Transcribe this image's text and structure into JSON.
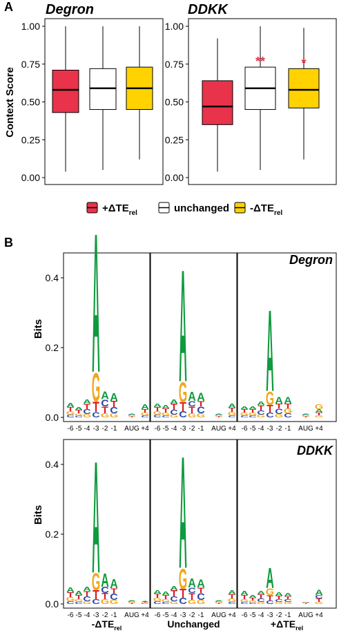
{
  "figure": {
    "panel_a_label": "A",
    "panel_b_label": "B"
  },
  "colors": {
    "up": "#e8334a",
    "unchanged": "#ffffff",
    "down": "#ffd200",
    "A": "#0f9a3e",
    "C": "#2a4aa8",
    "G": "#f2a81d",
    "T": "#d91f26"
  },
  "chart_data": [
    {
      "type": "box",
      "title": "Degron",
      "ylabel": "Context Score",
      "ylim": [
        0,
        1.05
      ],
      "yticks": [
        "0.00",
        "0.25",
        "0.50",
        "0.75",
        "1.00"
      ],
      "yticks_values": [
        0,
        0.25,
        0.5,
        0.75,
        1.0
      ],
      "boxes": [
        {
          "group": "+ΔTErel",
          "min": 0.04,
          "q1": 0.43,
          "median": 0.58,
          "q3": 0.71,
          "max": 1.0
        },
        {
          "group": "unchanged",
          "min": 0.05,
          "q1": 0.45,
          "median": 0.59,
          "q3": 0.72,
          "max": 1.0
        },
        {
          "group": "-ΔTErel",
          "min": 0.12,
          "q1": 0.45,
          "median": 0.59,
          "q3": 0.73,
          "max": 1.0
        }
      ],
      "annotations": [
        "",
        "",
        ""
      ]
    },
    {
      "type": "box",
      "title": "DDKK",
      "ylabel": "",
      "ylim": [
        0,
        1.05
      ],
      "yticks": [
        "0.00",
        "0.25",
        "0.50",
        "0.75",
        "1.00"
      ],
      "yticks_values": [
        0,
        0.25,
        0.5,
        0.75,
        1.0
      ],
      "boxes": [
        {
          "group": "+ΔTErel",
          "min": 0.04,
          "q1": 0.35,
          "median": 0.47,
          "q3": 0.64,
          "max": 0.92
        },
        {
          "group": "unchanged",
          "min": 0.05,
          "q1": 0.45,
          "median": 0.59,
          "q3": 0.73,
          "max": 1.0
        },
        {
          "group": "-ΔTErel",
          "min": 0.12,
          "q1": 0.46,
          "median": 0.58,
          "q3": 0.72,
          "max": 0.99
        }
      ],
      "annotations": [
        "",
        "**",
        "*"
      ]
    },
    {
      "type": "sequence-logo",
      "ylabel": "Bits",
      "yticks": [
        "0.0",
        "0.2",
        "0.4"
      ],
      "yticks_values": [
        0,
        0.2,
        0.4
      ],
      "ylim": [
        0,
        0.6
      ],
      "positions": [
        "-6",
        "-5",
        "-4",
        "-3",
        "-2",
        "-1",
        "AUG",
        "+4"
      ],
      "columns": [
        "-ΔTErel",
        "Unchanged",
        "+ΔTErel"
      ],
      "rows": [
        "Degron",
        "DDKK"
      ],
      "logos": [
        {
          "row": "Degron",
          "column": "-ΔTErel",
          "stacks": [
            [
              [
                "C",
                0.008
              ],
              [
                "G",
                0.01
              ],
              [
                "T",
                0.012
              ],
              [
                "A",
                0.012
              ]
            ],
            [
              [
                "C",
                0.005
              ],
              [
                "G",
                0.007
              ],
              [
                "T",
                0.01
              ],
              [
                "A",
                0.008
              ]
            ],
            [
              [
                "G",
                0.01
              ],
              [
                "C",
                0.014
              ],
              [
                "T",
                0.016
              ],
              [
                "A",
                0.012
              ]
            ],
            [
              [
                "C",
                0.016
              ],
              [
                "T",
                0.03
              ],
              [
                "G",
                0.085
              ],
              [
                "A",
                0.41
              ]
            ],
            [
              [
                "G",
                0.012
              ],
              [
                "T",
                0.02
              ],
              [
                "C",
                0.02
              ],
              [
                "A",
                0.022
              ]
            ],
            [
              [
                "G",
                0.012
              ],
              [
                "C",
                0.018
              ],
              [
                "T",
                0.018
              ],
              [
                "A",
                0.022
              ]
            ],
            [
              [
                "T",
                0.003
              ],
              [
                "G",
                0.003
              ],
              [
                "C",
                0.002
              ],
              [
                "A",
                0.002
              ]
            ],
            [
              [
                "C",
                0.006
              ],
              [
                "G",
                0.008
              ],
              [
                "T",
                0.01
              ],
              [
                "A",
                0.014
              ]
            ]
          ]
        },
        {
          "row": "Degron",
          "column": "Unchanged",
          "stacks": [
            [
              [
                "C",
                0.008
              ],
              [
                "G",
                0.01
              ],
              [
                "T",
                0.012
              ],
              [
                "A",
                0.01
              ]
            ],
            [
              [
                "C",
                0.006
              ],
              [
                "G",
                0.008
              ],
              [
                "T",
                0.012
              ],
              [
                "A",
                0.01
              ]
            ],
            [
              [
                "G",
                0.008
              ],
              [
                "C",
                0.014
              ],
              [
                "T",
                0.018
              ],
              [
                "A",
                0.012
              ]
            ],
            [
              [
                "C",
                0.018
              ],
              [
                "T",
                0.026
              ],
              [
                "G",
                0.06
              ],
              [
                "A",
                0.33
              ]
            ],
            [
              [
                "G",
                0.012
              ],
              [
                "T",
                0.02
              ],
              [
                "C",
                0.016
              ],
              [
                "A",
                0.026
              ]
            ],
            [
              [
                "G",
                0.012
              ],
              [
                "C",
                0.02
              ],
              [
                "T",
                0.016
              ],
              [
                "A",
                0.024
              ]
            ],
            [
              [
                "T",
                0.003
              ],
              [
                "G",
                0.003
              ],
              [
                "C",
                0.002
              ],
              [
                "A",
                0.002
              ]
            ],
            [
              [
                "C",
                0.006
              ],
              [
                "G",
                0.01
              ],
              [
                "T",
                0.012
              ],
              [
                "A",
                0.012
              ]
            ]
          ]
        },
        {
          "row": "Degron",
          "column": "+ΔTErel",
          "stacks": [
            [
              [
                "C",
                0.006
              ],
              [
                "G",
                0.008
              ],
              [
                "T",
                0.01
              ],
              [
                "A",
                0.008
              ]
            ],
            [
              [
                "C",
                0.006
              ],
              [
                "G",
                0.008
              ],
              [
                "T",
                0.01
              ],
              [
                "A",
                0.008
              ]
            ],
            [
              [
                "G",
                0.008
              ],
              [
                "C",
                0.012
              ],
              [
                "T",
                0.016
              ],
              [
                "A",
                0.01
              ]
            ],
            [
              [
                "C",
                0.014
              ],
              [
                "T",
                0.022
              ],
              [
                "G",
                0.04
              ],
              [
                "A",
                0.24
              ]
            ],
            [
              [
                "G",
                0.01
              ],
              [
                "C",
                0.016
              ],
              [
                "T",
                0.014
              ],
              [
                "A",
                0.02
              ]
            ],
            [
              [
                "C",
                0.012
              ],
              [
                "G",
                0.014
              ],
              [
                "T",
                0.014
              ],
              [
                "A",
                0.02
              ]
            ],
            [
              [
                "T",
                0.003
              ],
              [
                "G",
                0.003
              ],
              [
                "C",
                0.002
              ],
              [
                "A",
                0.002
              ]
            ],
            [
              [
                "G",
                0.006
              ],
              [
                "T",
                0.008
              ],
              [
                "A",
                0.01
              ],
              [
                "G",
                0.014
              ]
            ]
          ]
        },
        {
          "row": "DDKK",
          "column": "-ΔTErel",
          "stacks": [
            [
              [
                "C",
                0.008
              ],
              [
                "G",
                0.012
              ],
              [
                "T",
                0.014
              ],
              [
                "A",
                0.014
              ]
            ],
            [
              [
                "C",
                0.006
              ],
              [
                "G",
                0.008
              ],
              [
                "T",
                0.012
              ],
              [
                "A",
                0.012
              ]
            ],
            [
              [
                "G",
                0.008
              ],
              [
                "C",
                0.014
              ],
              [
                "T",
                0.016
              ],
              [
                "A",
                0.012
              ]
            ],
            [
              [
                "C",
                0.014
              ],
              [
                "T",
                0.026
              ],
              [
                "G",
                0.05
              ],
              [
                "A",
                0.33
              ]
            ],
            [
              [
                "G",
                0.014
              ],
              [
                "T",
                0.018
              ],
              [
                "C",
                0.018
              ],
              [
                "A",
                0.04
              ]
            ],
            [
              [
                "G",
                0.012
              ],
              [
                "C",
                0.018
              ],
              [
                "T",
                0.016
              ],
              [
                "A",
                0.026
              ]
            ],
            [
              [
                "T",
                0.003
              ],
              [
                "G",
                0.003
              ],
              [
                "C",
                0.002
              ],
              [
                "A",
                0.002
              ]
            ],
            [
              [
                "C",
                0.002
              ],
              [
                "G",
                0.002
              ],
              [
                "T",
                0.002
              ],
              [
                "A",
                0.002
              ]
            ]
          ]
        },
        {
          "row": "DDKK",
          "column": "Unchanged",
          "stacks": [
            [
              [
                "C",
                0.008
              ],
              [
                "G",
                0.01
              ],
              [
                "T",
                0.012
              ],
              [
                "A",
                0.01
              ]
            ],
            [
              [
                "C",
                0.006
              ],
              [
                "G",
                0.008
              ],
              [
                "T",
                0.012
              ],
              [
                "A",
                0.01
              ]
            ],
            [
              [
                "G",
                0.008
              ],
              [
                "C",
                0.014
              ],
              [
                "T",
                0.018
              ],
              [
                "A",
                0.012
              ]
            ],
            [
              [
                "C",
                0.018
              ],
              [
                "T",
                0.026
              ],
              [
                "G",
                0.06
              ],
              [
                "A",
                0.33
              ]
            ],
            [
              [
                "G",
                0.012
              ],
              [
                "T",
                0.02
              ],
              [
                "C",
                0.016
              ],
              [
                "A",
                0.026
              ]
            ],
            [
              [
                "G",
                0.012
              ],
              [
                "C",
                0.02
              ],
              [
                "T",
                0.016
              ],
              [
                "A",
                0.024
              ]
            ],
            [
              [
                "T",
                0.003
              ],
              [
                "G",
                0.003
              ],
              [
                "C",
                0.002
              ],
              [
                "A",
                0.002
              ]
            ],
            [
              [
                "C",
                0.006
              ],
              [
                "G",
                0.01
              ],
              [
                "T",
                0.012
              ],
              [
                "A",
                0.012
              ]
            ]
          ]
        },
        {
          "row": "DDKK",
          "column": "+ΔTErel",
          "stacks": [
            [
              [
                "C",
                0.006
              ],
              [
                "G",
                0.008
              ],
              [
                "T",
                0.012
              ],
              [
                "A",
                0.012
              ]
            ],
            [
              [
                "C",
                0.004
              ],
              [
                "G",
                0.006
              ],
              [
                "T",
                0.008
              ],
              [
                "A",
                0.008
              ]
            ],
            [
              [
                "G",
                0.006
              ],
              [
                "C",
                0.01
              ],
              [
                "T",
                0.012
              ],
              [
                "A",
                0.01
              ]
            ],
            [
              [
                "C",
                0.01
              ],
              [
                "T",
                0.016
              ],
              [
                "G",
                0.02
              ],
              [
                "A",
                0.06
              ]
            ],
            [
              [
                "G",
                0.006
              ],
              [
                "C",
                0.008
              ],
              [
                "T",
                0.01
              ],
              [
                "A",
                0.01
              ]
            ],
            [
              [
                "G",
                0.006
              ],
              [
                "C",
                0.008
              ],
              [
                "T",
                0.008
              ],
              [
                "A",
                0.01
              ]
            ],
            [
              [
                "T",
                0.002
              ],
              [
                "G",
                0.002
              ],
              [
                "C",
                0.001
              ],
              [
                "A",
                0.001
              ]
            ],
            [
              [
                "G",
                0.006
              ],
              [
                "T",
                0.01
              ],
              [
                "C",
                0.01
              ],
              [
                "A",
                0.016
              ]
            ]
          ]
        }
      ]
    }
  ],
  "legend": {
    "items": [
      {
        "main": "+ΔTE",
        "sub": "rel",
        "color": "#e8334a"
      },
      {
        "main": "unchanged",
        "sub": "",
        "color": "#ffffff"
      },
      {
        "main": "-ΔTE",
        "sub": "rel",
        "color": "#ffd200"
      }
    ]
  },
  "logo_bottom_labels": [
    {
      "main": "-ΔTE",
      "sub": "rel"
    },
    {
      "main": "Unchanged",
      "sub": ""
    },
    {
      "main": "+ΔTE",
      "sub": "rel"
    }
  ]
}
